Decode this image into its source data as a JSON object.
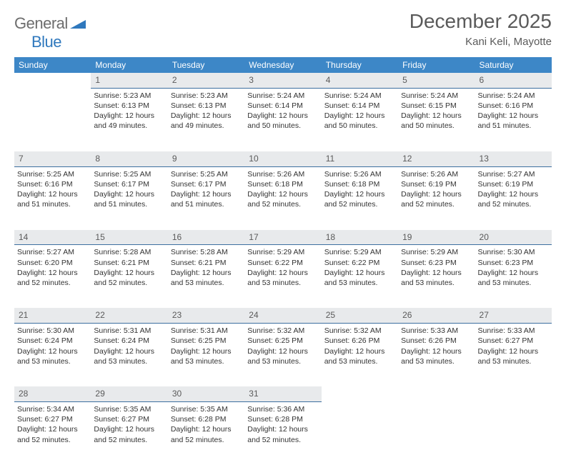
{
  "logo": {
    "part1": "General",
    "part2": "Blue"
  },
  "title": "December 2025",
  "location": "Kani Keli, Mayotte",
  "header_bg": "#3d87c7",
  "daynum_bg": "#e8eaec",
  "daynum_border": "#3d6fa0",
  "text_color": "#333333",
  "day_names": [
    "Sunday",
    "Monday",
    "Tuesday",
    "Wednesday",
    "Thursday",
    "Friday",
    "Saturday"
  ],
  "weeks": [
    [
      null,
      {
        "n": "1",
        "sr": "5:23 AM",
        "ss": "6:13 PM",
        "dl": "12 hours and 49 minutes."
      },
      {
        "n": "2",
        "sr": "5:23 AM",
        "ss": "6:13 PM",
        "dl": "12 hours and 49 minutes."
      },
      {
        "n": "3",
        "sr": "5:24 AM",
        "ss": "6:14 PM",
        "dl": "12 hours and 50 minutes."
      },
      {
        "n": "4",
        "sr": "5:24 AM",
        "ss": "6:14 PM",
        "dl": "12 hours and 50 minutes."
      },
      {
        "n": "5",
        "sr": "5:24 AM",
        "ss": "6:15 PM",
        "dl": "12 hours and 50 minutes."
      },
      {
        "n": "6",
        "sr": "5:24 AM",
        "ss": "6:16 PM",
        "dl": "12 hours and 51 minutes."
      }
    ],
    [
      {
        "n": "7",
        "sr": "5:25 AM",
        "ss": "6:16 PM",
        "dl": "12 hours and 51 minutes."
      },
      {
        "n": "8",
        "sr": "5:25 AM",
        "ss": "6:17 PM",
        "dl": "12 hours and 51 minutes."
      },
      {
        "n": "9",
        "sr": "5:25 AM",
        "ss": "6:17 PM",
        "dl": "12 hours and 51 minutes."
      },
      {
        "n": "10",
        "sr": "5:26 AM",
        "ss": "6:18 PM",
        "dl": "12 hours and 52 minutes."
      },
      {
        "n": "11",
        "sr": "5:26 AM",
        "ss": "6:18 PM",
        "dl": "12 hours and 52 minutes."
      },
      {
        "n": "12",
        "sr": "5:26 AM",
        "ss": "6:19 PM",
        "dl": "12 hours and 52 minutes."
      },
      {
        "n": "13",
        "sr": "5:27 AM",
        "ss": "6:19 PM",
        "dl": "12 hours and 52 minutes."
      }
    ],
    [
      {
        "n": "14",
        "sr": "5:27 AM",
        "ss": "6:20 PM",
        "dl": "12 hours and 52 minutes."
      },
      {
        "n": "15",
        "sr": "5:28 AM",
        "ss": "6:21 PM",
        "dl": "12 hours and 52 minutes."
      },
      {
        "n": "16",
        "sr": "5:28 AM",
        "ss": "6:21 PM",
        "dl": "12 hours and 53 minutes."
      },
      {
        "n": "17",
        "sr": "5:29 AM",
        "ss": "6:22 PM",
        "dl": "12 hours and 53 minutes."
      },
      {
        "n": "18",
        "sr": "5:29 AM",
        "ss": "6:22 PM",
        "dl": "12 hours and 53 minutes."
      },
      {
        "n": "19",
        "sr": "5:29 AM",
        "ss": "6:23 PM",
        "dl": "12 hours and 53 minutes."
      },
      {
        "n": "20",
        "sr": "5:30 AM",
        "ss": "6:23 PM",
        "dl": "12 hours and 53 minutes."
      }
    ],
    [
      {
        "n": "21",
        "sr": "5:30 AM",
        "ss": "6:24 PM",
        "dl": "12 hours and 53 minutes."
      },
      {
        "n": "22",
        "sr": "5:31 AM",
        "ss": "6:24 PM",
        "dl": "12 hours and 53 minutes."
      },
      {
        "n": "23",
        "sr": "5:31 AM",
        "ss": "6:25 PM",
        "dl": "12 hours and 53 minutes."
      },
      {
        "n": "24",
        "sr": "5:32 AM",
        "ss": "6:25 PM",
        "dl": "12 hours and 53 minutes."
      },
      {
        "n": "25",
        "sr": "5:32 AM",
        "ss": "6:26 PM",
        "dl": "12 hours and 53 minutes."
      },
      {
        "n": "26",
        "sr": "5:33 AM",
        "ss": "6:26 PM",
        "dl": "12 hours and 53 minutes."
      },
      {
        "n": "27",
        "sr": "5:33 AM",
        "ss": "6:27 PM",
        "dl": "12 hours and 53 minutes."
      }
    ],
    [
      {
        "n": "28",
        "sr": "5:34 AM",
        "ss": "6:27 PM",
        "dl": "12 hours and 52 minutes."
      },
      {
        "n": "29",
        "sr": "5:35 AM",
        "ss": "6:27 PM",
        "dl": "12 hours and 52 minutes."
      },
      {
        "n": "30",
        "sr": "5:35 AM",
        "ss": "6:28 PM",
        "dl": "12 hours and 52 minutes."
      },
      {
        "n": "31",
        "sr": "5:36 AM",
        "ss": "6:28 PM",
        "dl": "12 hours and 52 minutes."
      },
      null,
      null,
      null
    ]
  ],
  "labels": {
    "sunrise": "Sunrise: ",
    "sunset": "Sunset: ",
    "daylight": "Daylight: "
  }
}
